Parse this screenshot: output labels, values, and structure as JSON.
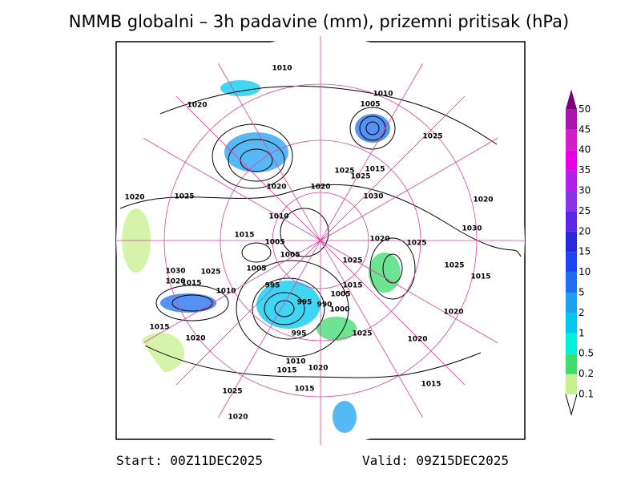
{
  "header": {
    "title": "NMMB globalni – 3h padavine (mm), prizemni pritisak (hPa)"
  },
  "colorbar": {
    "levels": [
      0.1,
      0.2,
      0.5,
      1,
      2,
      5,
      10,
      15,
      20,
      25,
      30,
      35,
      40,
      45,
      50
    ],
    "colors": [
      "#c8f08c",
      "#3cdc6e",
      "#00f0dc",
      "#00c8f0",
      "#1ea0f0",
      "#1e6ef0",
      "#1e46f0",
      "#2828dc",
      "#5a28e6",
      "#8c32e6",
      "#b41ee6",
      "#e600e6",
      "#d21ec8",
      "#aa14aa",
      "#780078"
    ]
  },
  "isobar_labels": [
    1010,
    1010,
    1005,
    1020,
    1025,
    1025,
    1015,
    1025,
    1020,
    1020,
    1020,
    1025,
    1030,
    1020,
    1010,
    1015,
    1005,
    1020,
    1030,
    1025,
    1005,
    1025,
    1025,
    1015,
    1005,
    1030,
    1025,
    1020,
    1015,
    995,
    1015,
    1010,
    1005,
    995,
    990,
    1000,
    1020,
    1015,
    995,
    1025,
    1020,
    1020,
    1010,
    1015,
    1020,
    1015,
    1015,
    1025,
    1020
  ],
  "footer": {
    "start": "Start: 00Z11DEC2025",
    "valid": "Valid: 09Z15DEC2025"
  }
}
